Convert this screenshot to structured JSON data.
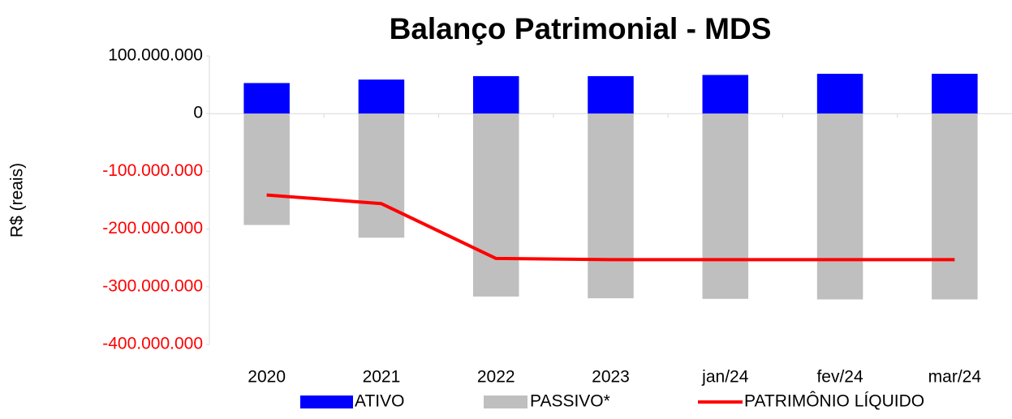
{
  "chart_data": {
    "type": "bar",
    "title": "Balanço Patrimonial - MDS",
    "y_label": "R$ (reais)",
    "categories": [
      "2020",
      "2021",
      "2022",
      "2023",
      "jan/24",
      "fev/24",
      "mar/24"
    ],
    "series": [
      {
        "name": "ATIVO",
        "type": "bar",
        "color": "#0000ff",
        "values": [
          53000000,
          59000000,
          65000000,
          65000000,
          67000000,
          69000000,
          69000000
        ]
      },
      {
        "name": "PASSIVO*",
        "type": "bar",
        "color": "#bfbfbf",
        "values": [
          -193000000,
          -215000000,
          -317000000,
          -320000000,
          -321000000,
          -322000000,
          -322000000
        ]
      },
      {
        "name": "PATRIMÔNIO LÍQUIDO",
        "type": "line",
        "color": "#ff0000",
        "values": [
          -141000000,
          -156000000,
          -251000000,
          -253000000,
          -253000000,
          -253000000,
          -253000000
        ]
      }
    ],
    "ylim": [
      -400000000,
      100000000
    ],
    "yticks": [
      {
        "value": -400000000,
        "label": "-400.000.000"
      },
      {
        "value": -300000000,
        "label": "-300.000.000"
      },
      {
        "value": -200000000,
        "label": "-200.000.000"
      },
      {
        "value": -100000000,
        "label": "-100.000.000"
      },
      0,
      {
        "value": 100000000,
        "label": "100.000.000"
      }
    ],
    "negative_tick_color": "#ff0000",
    "grid": false,
    "legend": "bottom"
  }
}
